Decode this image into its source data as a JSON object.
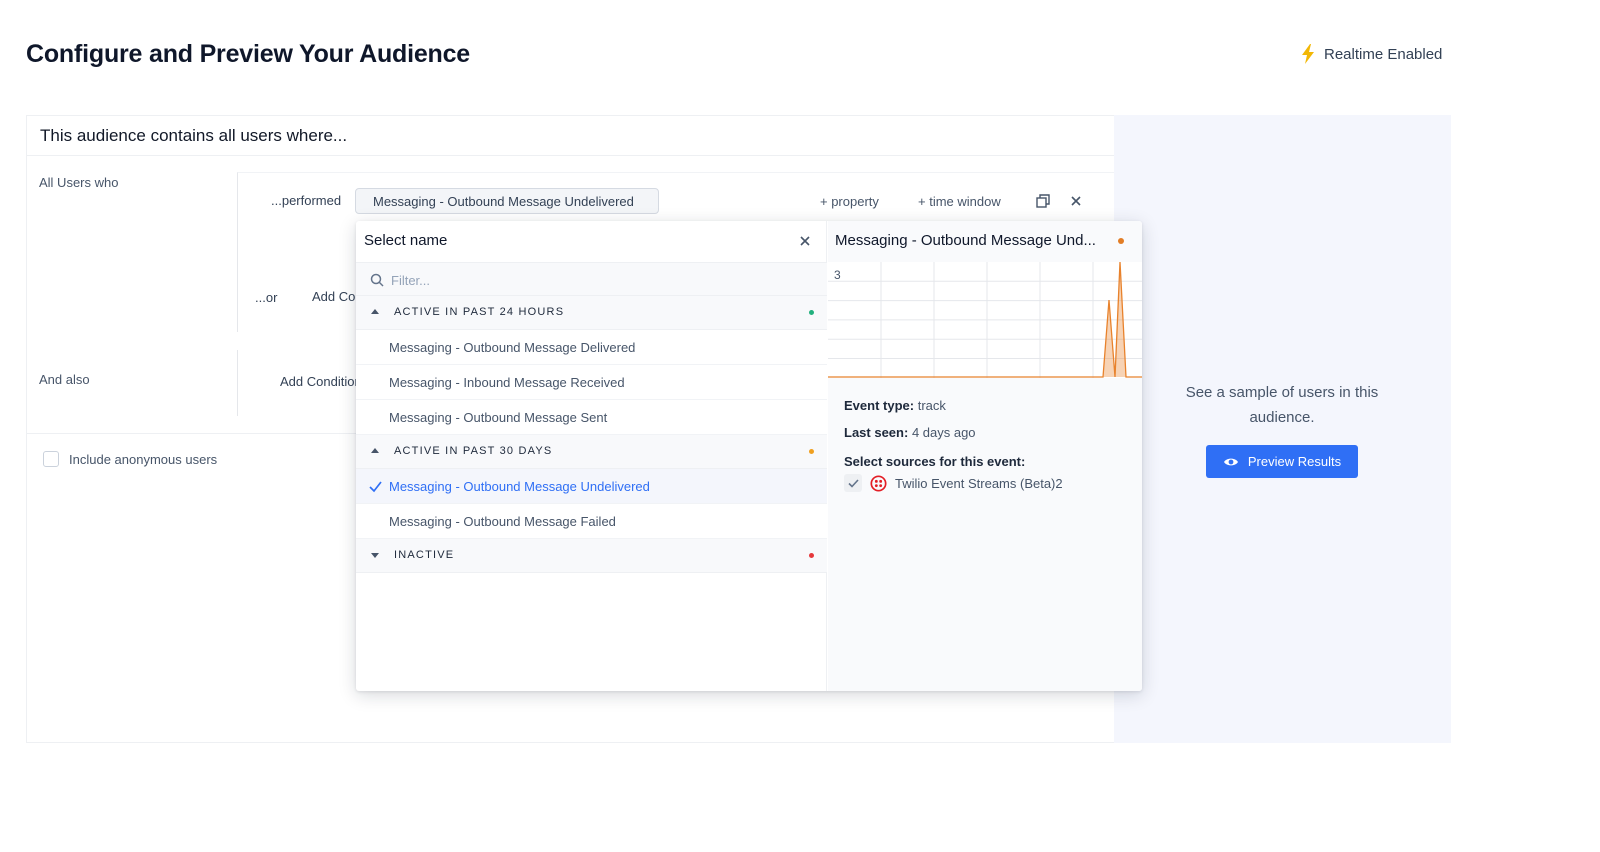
{
  "page": {
    "title": "Configure and Preview Your Audience"
  },
  "realtime": {
    "label": "Realtime Enabled",
    "color": "#f2b705",
    "icon": "lightning-bolt-icon"
  },
  "builder": {
    "header": "This audience contains all users where...",
    "all_users_label": "All Users who",
    "performed_label": "...performed",
    "selected_event": "Messaging - Outbound Message Undelivered",
    "add_property": "+ property",
    "add_time_window": "+ time window",
    "or_label": "...or",
    "add_condition_or": "Add Condition",
    "and_also_label": "And also",
    "add_condition_and": "Add Condition",
    "include_anonymous": "Include anonymous users",
    "include_anonymous_checked": false
  },
  "preview": {
    "sample_text": "See a sample of users in this audience.",
    "button_label": "Preview Results",
    "accent": "#2f6ff5"
  },
  "dropdown": {
    "title": "Select name",
    "filter_placeholder": "Filter...",
    "groups": [
      {
        "title": "ACTIVE IN PAST 24 HOURS",
        "expanded": true,
        "dot_color": "#22b07d",
        "items": [
          {
            "label": "Messaging - Outbound Message Delivered",
            "selected": false
          },
          {
            "label": "Messaging - Inbound Message Received",
            "selected": false
          },
          {
            "label": "Messaging - Outbound Message Sent",
            "selected": false
          }
        ]
      },
      {
        "title": "ACTIVE IN PAST 30 DAYS",
        "expanded": true,
        "dot_color": "#f0a020",
        "items": [
          {
            "label": "Messaging - Outbound Message Undelivered",
            "selected": true
          },
          {
            "label": "Messaging - Outbound Message Failed",
            "selected": false
          }
        ]
      },
      {
        "title": "INACTIVE",
        "expanded": false,
        "dot_color": "#e5383b",
        "items": []
      }
    ]
  },
  "detail": {
    "title": "Messaging - Outbound Message Und...",
    "status_color": "#e27d25",
    "spark_max_label": "3",
    "event_type_label": "Event type:",
    "event_type_value": "track",
    "last_seen_label": "Last seen:",
    "last_seen_value": "4 days ago",
    "sources_label": "Select sources for this event:",
    "source_name": "Twilio Event Streams (Beta)2",
    "source_icon": "twilio-logo-icon",
    "source_color": "#e31e26",
    "spark_color": "#e8822c"
  }
}
